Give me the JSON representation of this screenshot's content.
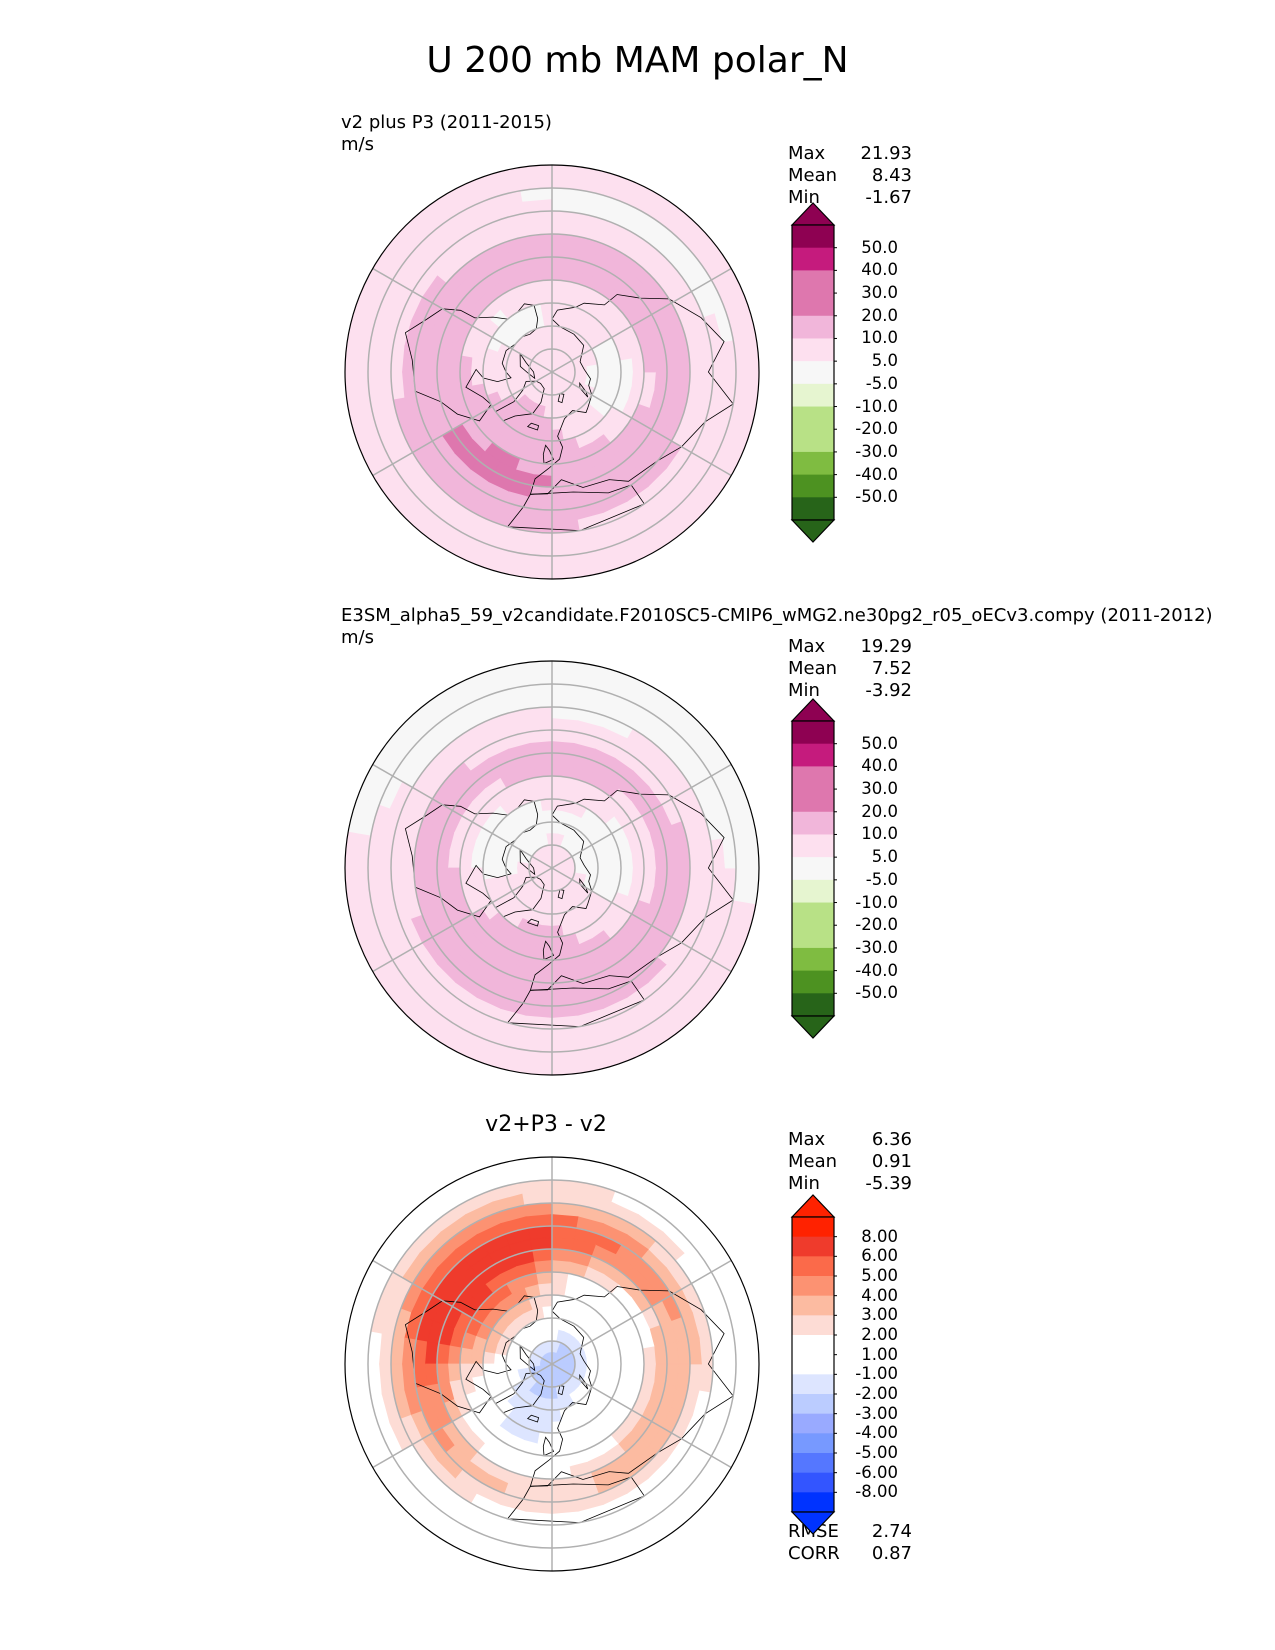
{
  "figure_title": "U 200 mb MAM polar_N",
  "colors": {
    "seq": [
      "#276419",
      "#4d9221",
      "#7fbc41",
      "#b8e186",
      "#e6f5d0",
      "#f7f7f7",
      "#fde0ef",
      "#f1b6da",
      "#de77ae",
      "#c51b7d",
      "#8e0152"
    ],
    "div": [
      "#0033ff",
      "#3355ff",
      "#5577ff",
      "#7799ff",
      "#99aaff",
      "#bbccff",
      "#dde5ff",
      "#ffffff",
      "#fddcd5",
      "#fcbba1",
      "#fc9272",
      "#fb6a4a",
      "#ef3b2c",
      "#ff2200"
    ],
    "land": "#000000",
    "grid": "#b0b0b0"
  },
  "chart_data": [
    {
      "type": "polar_contour",
      "name": "test",
      "title": "v2 plus P3 (2011-2015)",
      "units": "m/s",
      "stats": {
        "Max": "21.93",
        "Mean": "8.43",
        "Min": "-1.67"
      },
      "colorbar_levels": [
        "50.0",
        "40.0",
        "30.0",
        "20.0",
        "10.0",
        "5.0",
        "-5.0",
        "-10.0",
        "-20.0",
        "-30.0",
        "-40.0",
        "-50.0"
      ],
      "field": {
        "base": 6,
        "wave1": 4,
        "wave2": 6,
        "wave_phase": 0.6,
        "jet_lat": 40,
        "jet_amp": 10,
        "pole": 2
      }
    },
    {
      "type": "polar_contour",
      "name": "reference",
      "title": "E3SM_alpha5_59_v2candidate.F2010SC5-CMIP6_wMG2.ne30pg2_r05_oECv3.compy (2011-2012)",
      "units": "m/s",
      "stats": {
        "Max": "19.29",
        "Mean": "7.52",
        "Min": "-3.92"
      },
      "colorbar_levels": [
        "50.0",
        "40.0",
        "30.0",
        "20.0",
        "10.0",
        "5.0",
        "-5.0",
        "-10.0",
        "-20.0",
        "-30.0",
        "-40.0",
        "-50.0"
      ],
      "field": {
        "base": 5,
        "wave1": 3,
        "wave2": 5,
        "wave_phase": 0.2,
        "jet_lat": 40,
        "jet_amp": 9,
        "pole": 1
      }
    },
    {
      "type": "polar_contour",
      "name": "difference",
      "title": "v2+P3 - v2",
      "units": "",
      "stats": {
        "Max": "6.36",
        "Mean": "0.91",
        "Min": "-5.39"
      },
      "colorbar_levels": [
        "8.00",
        "6.00",
        "5.00",
        "4.00",
        "3.00",
        "2.00",
        "1.00",
        "-1.00",
        "-2.00",
        "-3.00",
        "-4.00",
        "-5.00",
        "-6.00",
        "-8.00"
      ],
      "metrics": {
        "RMSE": "2.74",
        "CORR": "0.87"
      },
      "field": {
        "base": 1.2,
        "wave1": 2,
        "wave2": 3.5,
        "wave_phase": 2.6,
        "jet_lat": 35,
        "jet_amp": 3.5,
        "pole": -4
      }
    }
  ]
}
